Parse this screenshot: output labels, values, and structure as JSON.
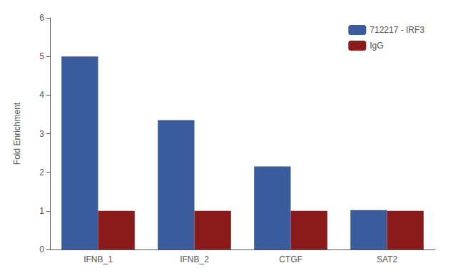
{
  "chart_data": {
    "type": "bar",
    "ylabel": "Fold Enrichment",
    "categories": [
      "IFNB_1",
      "IFNB_2",
      "CTGF",
      "SAT2"
    ],
    "series": [
      {
        "name": "712217 - IRF3",
        "color": "#3A5B9C",
        "values": [
          5.0,
          3.35,
          2.15,
          1.02
        ]
      },
      {
        "name": "IgG",
        "color": "#8B1A1A",
        "values": [
          1.0,
          1.0,
          1.0,
          1.0
        ]
      }
    ],
    "ylim": [
      0,
      6
    ],
    "yticks": [
      0,
      1,
      2,
      3,
      4,
      5,
      6
    ],
    "grid": false,
    "legend": "upper right"
  }
}
